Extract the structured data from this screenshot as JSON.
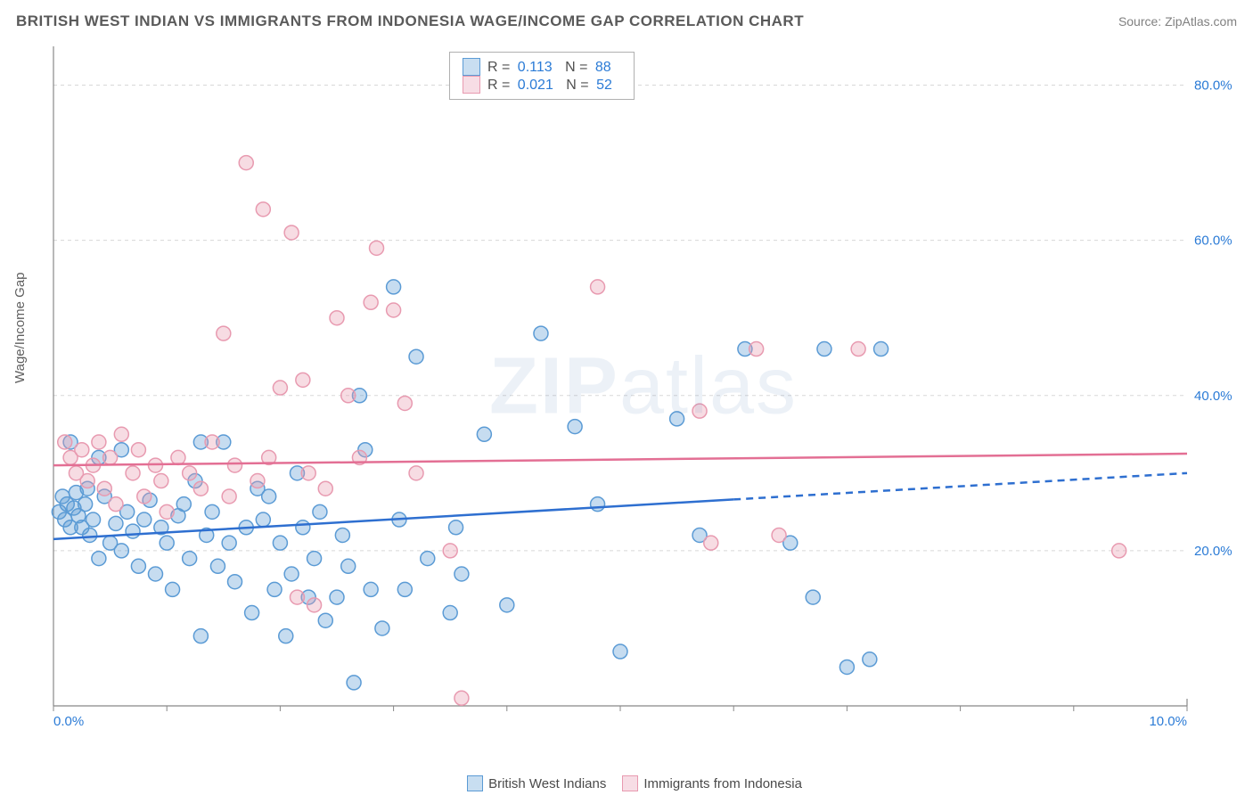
{
  "title": "BRITISH WEST INDIAN VS IMMIGRANTS FROM INDONESIA WAGE/INCOME GAP CORRELATION CHART",
  "source": "Source: ZipAtlas.com",
  "watermark": "ZIPatlas",
  "ylabel": "Wage/Income Gap",
  "chart": {
    "type": "scatter",
    "xlim": [
      0,
      10
    ],
    "ylim": [
      0,
      85
    ],
    "xticks": [
      0,
      1,
      2,
      3,
      4,
      5,
      6,
      7,
      8,
      9,
      10
    ],
    "yticks": [
      20,
      40,
      60,
      80
    ],
    "xtick_labels": {
      "0": "0.0%",
      "10": "10.0%"
    },
    "ytick_labels": {
      "20": "20.0%",
      "40": "40.0%",
      "60": "60.0%",
      "80": "80.0%"
    },
    "grid_color": "#d8d8d8",
    "axis_color": "#888888",
    "tick_label_color": "#2b7bd6",
    "background": "#ffffff",
    "marker_radius": 8,
    "marker_stroke_width": 1.5,
    "marker_fill_opacity": 0.35
  },
  "series": [
    {
      "name": "British West Indians",
      "color_stroke": "#5b9bd5",
      "color_fill": "#5b9bd5",
      "trend": {
        "y0": 21.5,
        "y1": 30.0,
        "solid_until_x": 6.0,
        "stroke": "#2e6fd0",
        "width": 2.5
      },
      "points": [
        [
          0.05,
          25
        ],
        [
          0.08,
          27
        ],
        [
          0.1,
          24
        ],
        [
          0.12,
          26
        ],
        [
          0.15,
          23
        ],
        [
          0.18,
          25.5
        ],
        [
          0.2,
          27.5
        ],
        [
          0.22,
          24.5
        ],
        [
          0.25,
          23
        ],
        [
          0.28,
          26
        ],
        [
          0.3,
          28
        ],
        [
          0.32,
          22
        ],
        [
          0.35,
          24
        ],
        [
          0.4,
          19
        ],
        [
          0.45,
          27
        ],
        [
          0.5,
          21
        ],
        [
          0.55,
          23.5
        ],
        [
          0.6,
          20
        ],
        [
          0.65,
          25
        ],
        [
          0.7,
          22.5
        ],
        [
          0.75,
          18
        ],
        [
          0.8,
          24
        ],
        [
          0.85,
          26.5
        ],
        [
          0.9,
          17
        ],
        [
          0.95,
          23
        ],
        [
          1.0,
          21
        ],
        [
          1.05,
          15
        ],
        [
          1.1,
          24.5
        ],
        [
          1.15,
          26
        ],
        [
          1.2,
          19
        ],
        [
          1.25,
          29
        ],
        [
          1.3,
          9
        ],
        [
          1.35,
          22
        ],
        [
          1.4,
          25
        ],
        [
          1.45,
          18
        ],
        [
          1.5,
          34
        ],
        [
          1.55,
          21
        ],
        [
          1.6,
          16
        ],
        [
          1.7,
          23
        ],
        [
          1.75,
          12
        ],
        [
          1.8,
          28
        ],
        [
          1.85,
          24
        ],
        [
          1.9,
          27
        ],
        [
          1.95,
          15
        ],
        [
          2.0,
          21
        ],
        [
          2.05,
          9
        ],
        [
          2.1,
          17
        ],
        [
          2.15,
          30
        ],
        [
          2.2,
          23
        ],
        [
          2.25,
          14
        ],
        [
          2.3,
          19
        ],
        [
          2.35,
          25
        ],
        [
          2.4,
          11
        ],
        [
          2.5,
          14
        ],
        [
          2.55,
          22
        ],
        [
          2.6,
          18
        ],
        [
          2.65,
          3
        ],
        [
          2.7,
          40
        ],
        [
          2.75,
          33
        ],
        [
          2.8,
          15
        ],
        [
          2.9,
          10
        ],
        [
          3.0,
          54
        ],
        [
          3.05,
          24
        ],
        [
          3.1,
          15
        ],
        [
          3.2,
          45
        ],
        [
          3.3,
          19
        ],
        [
          3.5,
          12
        ],
        [
          3.55,
          23
        ],
        [
          3.6,
          17
        ],
        [
          3.8,
          35
        ],
        [
          4.0,
          13
        ],
        [
          4.3,
          48
        ],
        [
          4.6,
          36
        ],
        [
          4.8,
          26
        ],
        [
          5.0,
          7
        ],
        [
          5.5,
          37
        ],
        [
          5.7,
          22
        ],
        [
          6.1,
          46
        ],
        [
          6.5,
          21
        ],
        [
          6.7,
          14
        ],
        [
          6.8,
          46
        ],
        [
          7.0,
          5
        ],
        [
          7.2,
          6
        ],
        [
          7.3,
          46
        ],
        [
          0.15,
          34
        ],
        [
          0.4,
          32
        ],
        [
          0.6,
          33
        ],
        [
          1.3,
          34
        ]
      ]
    },
    {
      "name": "Immigrants from Indonesia",
      "color_stroke": "#e89ab0",
      "color_fill": "#e89ab0",
      "trend": {
        "y0": 31.0,
        "y1": 32.5,
        "solid_until_x": 10.0,
        "stroke": "#e36f94",
        "width": 2.5
      },
      "points": [
        [
          0.1,
          34
        ],
        [
          0.15,
          32
        ],
        [
          0.2,
          30
        ],
        [
          0.25,
          33
        ],
        [
          0.3,
          29
        ],
        [
          0.35,
          31
        ],
        [
          0.4,
          34
        ],
        [
          0.45,
          28
        ],
        [
          0.5,
          32
        ],
        [
          0.55,
          26
        ],
        [
          0.6,
          35
        ],
        [
          0.7,
          30
        ],
        [
          0.75,
          33
        ],
        [
          0.8,
          27
        ],
        [
          0.9,
          31
        ],
        [
          0.95,
          29
        ],
        [
          1.0,
          25
        ],
        [
          1.1,
          32
        ],
        [
          1.2,
          30
        ],
        [
          1.3,
          28
        ],
        [
          1.4,
          34
        ],
        [
          1.5,
          48
        ],
        [
          1.55,
          27
        ],
        [
          1.6,
          31
        ],
        [
          1.7,
          70
        ],
        [
          1.8,
          29
        ],
        [
          1.85,
          64
        ],
        [
          1.9,
          32
        ],
        [
          2.0,
          41
        ],
        [
          2.1,
          61
        ],
        [
          2.2,
          42
        ],
        [
          2.25,
          30
        ],
        [
          2.3,
          13
        ],
        [
          2.4,
          28
        ],
        [
          2.5,
          50
        ],
        [
          2.6,
          40
        ],
        [
          2.7,
          32
        ],
        [
          2.8,
          52
        ],
        [
          2.85,
          59
        ],
        [
          3.0,
          51
        ],
        [
          3.1,
          39
        ],
        [
          3.2,
          30
        ],
        [
          3.5,
          20
        ],
        [
          3.6,
          1
        ],
        [
          4.8,
          54
        ],
        [
          5.7,
          38
        ],
        [
          5.8,
          21
        ],
        [
          6.2,
          46
        ],
        [
          6.4,
          22
        ],
        [
          7.1,
          46
        ],
        [
          9.4,
          20
        ],
        [
          2.15,
          14
        ]
      ]
    }
  ],
  "stats": [
    {
      "series_ix": 0,
      "R": "0.113",
      "N": "88"
    },
    {
      "series_ix": 1,
      "R": "0.021",
      "N": "52"
    }
  ],
  "legend": [
    {
      "series_ix": 0,
      "label": "British West Indians"
    },
    {
      "series_ix": 1,
      "label": "Immigrants from Indonesia"
    }
  ]
}
